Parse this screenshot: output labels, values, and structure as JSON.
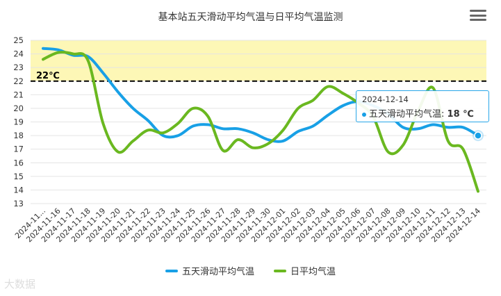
{
  "title": "基本站五天滑动平均气温与日平均气温监测",
  "menu_icon": "hamburger-menu-icon",
  "colors": {
    "five_day": "#18a0e6",
    "daily": "#6ab820",
    "band": "#fdf7b6",
    "threshold": "#000000"
  },
  "threshold": {
    "value": 22,
    "label": "22℃"
  },
  "band": {
    "from": 22,
    "to": 25
  },
  "tooltip": {
    "date": "2024-12-14",
    "series": "五天滑动平均气温",
    "value": "18 ℃"
  },
  "watermark": "大数据",
  "chart_data": {
    "type": "line",
    "title": "基本站五天滑动平均气温与日平均气温监测",
    "ylim": [
      13,
      25
    ],
    "yticks": [
      13,
      14,
      15,
      16,
      17,
      18,
      19,
      20,
      21,
      22,
      23,
      24,
      25
    ],
    "grid": true,
    "legend_position": "bottom",
    "categories": [
      "2024-11...",
      "2024-11-16",
      "2024-11-17",
      "2024-11-18",
      "2024-11-19",
      "2024-11-20",
      "2024-11-21",
      "2024-11-22",
      "2024-11-23",
      "2024-11-24",
      "2024-11-25",
      "2024-11-26",
      "2024-11-27",
      "2024-11-28",
      "2024-11-29",
      "2024-11-30",
      "2024-12-01",
      "2024-12-02",
      "2024-12-03",
      "2024-12-04",
      "2024-12-05",
      "2024-12-06",
      "2024-12-07",
      "2024-12-08",
      "2024-12-09",
      "2024-12-10",
      "2024-12-11",
      "2024-12-12",
      "2024-12-13",
      "2024-12-14"
    ],
    "series": [
      {
        "name": "五天滑动平均气温",
        "values": [
          24.4,
          24.3,
          23.9,
          23.8,
          22.6,
          21.2,
          20.0,
          19.1,
          18.0,
          18.0,
          18.7,
          18.8,
          18.5,
          18.5,
          18.2,
          17.7,
          17.6,
          18.3,
          18.7,
          19.5,
          20.2,
          20.5,
          20.2,
          19.6,
          18.6,
          18.5,
          18.8,
          18.6,
          18.6,
          18.0
        ]
      },
      {
        "name": "日平均气温",
        "values": [
          23.6,
          24.1,
          24.0,
          23.5,
          18.9,
          16.8,
          17.6,
          18.4,
          18.2,
          18.9,
          20.0,
          19.4,
          16.9,
          17.7,
          17.1,
          17.4,
          18.4,
          20.0,
          20.6,
          21.6,
          21.1,
          20.4,
          19.4,
          16.8,
          17.3,
          19.8,
          21.5,
          17.6,
          17.0,
          13.9
        ]
      }
    ]
  }
}
